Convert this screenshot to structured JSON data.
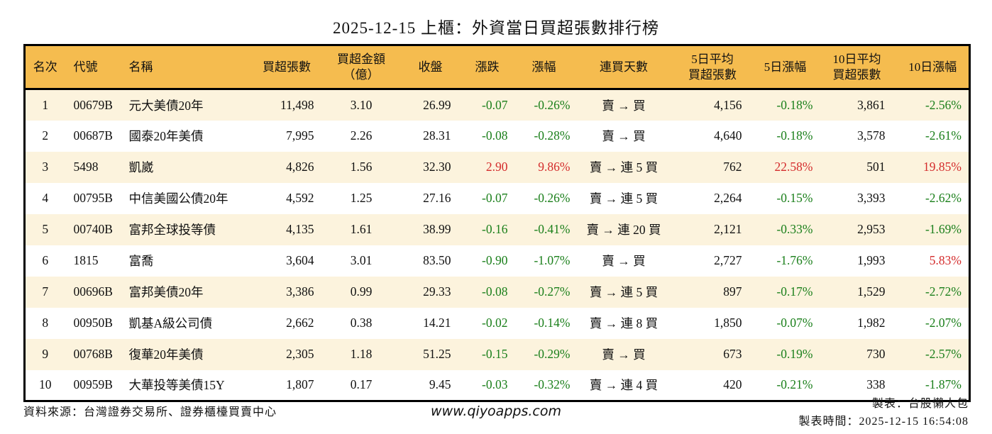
{
  "title": "2025-12-15 上櫃：外資當日買超張數排行榜",
  "colors": {
    "header_bg": "#f5bc4f",
    "stripe_bg": "#fcf3dd",
    "down_green": "#1a7f1a",
    "up_red": "#d42c2c"
  },
  "table": {
    "headers": [
      [
        "名次"
      ],
      [
        "代號"
      ],
      [
        "名稱"
      ],
      [
        "買超張數"
      ],
      [
        "買超金額",
        "（億）"
      ],
      [
        "收盤"
      ],
      [
        "漲跌"
      ],
      [
        "漲幅"
      ],
      [
        "連買天數"
      ],
      [
        "5日平均",
        "買超張數"
      ],
      [
        "5日漲幅"
      ],
      [
        "10日平均",
        "買超張數"
      ],
      [
        "10日漲幅"
      ]
    ],
    "rows": [
      {
        "rank": "1",
        "code": "00679B",
        "name": "元大美債20年",
        "net_buy": "11,498",
        "amount": "3.10",
        "close": "26.99",
        "change": "-0.07",
        "change_pct": "-0.26%",
        "streak": "賣 → 買",
        "avg5": "4,156",
        "pct5": "-0.18%",
        "avg10": "3,861",
        "pct10": "-2.56%",
        "day_color": "green",
        "pct5_color": "green",
        "pct10_color": "green"
      },
      {
        "rank": "2",
        "code": "00687B",
        "name": "國泰20年美債",
        "net_buy": "7,995",
        "amount": "2.26",
        "close": "28.31",
        "change": "-0.08",
        "change_pct": "-0.28%",
        "streak": "賣 → 買",
        "avg5": "4,640",
        "pct5": "-0.18%",
        "avg10": "3,578",
        "pct10": "-2.61%",
        "day_color": "green",
        "pct5_color": "green",
        "pct10_color": "green"
      },
      {
        "rank": "3",
        "code": "5498",
        "name": "凱崴",
        "net_buy": "4,826",
        "amount": "1.56",
        "close": "32.30",
        "change": "2.90",
        "change_pct": "9.86%",
        "streak": "賣 → 連 5 買",
        "avg5": "762",
        "pct5": "22.58%",
        "avg10": "501",
        "pct10": "19.85%",
        "day_color": "red",
        "pct5_color": "red",
        "pct10_color": "red"
      },
      {
        "rank": "4",
        "code": "00795B",
        "name": "中信美國公債20年",
        "net_buy": "4,592",
        "amount": "1.25",
        "close": "27.16",
        "change": "-0.07",
        "change_pct": "-0.26%",
        "streak": "賣 → 連 5 買",
        "avg5": "2,264",
        "pct5": "-0.15%",
        "avg10": "3,393",
        "pct10": "-2.62%",
        "day_color": "green",
        "pct5_color": "green",
        "pct10_color": "green"
      },
      {
        "rank": "5",
        "code": "00740B",
        "name": "富邦全球投等債",
        "net_buy": "4,135",
        "amount": "1.61",
        "close": "38.99",
        "change": "-0.16",
        "change_pct": "-0.41%",
        "streak": "賣 → 連 20 買",
        "avg5": "2,121",
        "pct5": "-0.33%",
        "avg10": "2,953",
        "pct10": "-1.69%",
        "day_color": "green",
        "pct5_color": "green",
        "pct10_color": "green"
      },
      {
        "rank": "6",
        "code": "1815",
        "name": "富喬",
        "net_buy": "3,604",
        "amount": "3.01",
        "close": "83.50",
        "change": "-0.90",
        "change_pct": "-1.07%",
        "streak": "賣 → 買",
        "avg5": "2,727",
        "pct5": "-1.76%",
        "avg10": "1,993",
        "pct10": "5.83%",
        "day_color": "green",
        "pct5_color": "green",
        "pct10_color": "red"
      },
      {
        "rank": "7",
        "code": "00696B",
        "name": "富邦美債20年",
        "net_buy": "3,386",
        "amount": "0.99",
        "close": "29.33",
        "change": "-0.08",
        "change_pct": "-0.27%",
        "streak": "賣 → 連 5 買",
        "avg5": "897",
        "pct5": "-0.17%",
        "avg10": "1,529",
        "pct10": "-2.72%",
        "day_color": "green",
        "pct5_color": "green",
        "pct10_color": "green"
      },
      {
        "rank": "8",
        "code": "00950B",
        "name": "凱基A級公司債",
        "net_buy": "2,662",
        "amount": "0.38",
        "close": "14.21",
        "change": "-0.02",
        "change_pct": "-0.14%",
        "streak": "賣 → 連 8 買",
        "avg5": "1,850",
        "pct5": "-0.07%",
        "avg10": "1,982",
        "pct10": "-2.07%",
        "day_color": "green",
        "pct5_color": "green",
        "pct10_color": "green"
      },
      {
        "rank": "9",
        "code": "00768B",
        "name": "復華20年美債",
        "net_buy": "2,305",
        "amount": "1.18",
        "close": "51.25",
        "change": "-0.15",
        "change_pct": "-0.29%",
        "streak": "賣 → 買",
        "avg5": "673",
        "pct5": "-0.19%",
        "avg10": "730",
        "pct10": "-2.57%",
        "day_color": "green",
        "pct5_color": "green",
        "pct10_color": "green"
      },
      {
        "rank": "10",
        "code": "00959B",
        "name": "大華投等美債15Y",
        "net_buy": "1,807",
        "amount": "0.17",
        "close": "9.45",
        "change": "-0.03",
        "change_pct": "-0.32%",
        "streak": "賣 → 連 4 買",
        "avg5": "420",
        "pct5": "-0.21%",
        "avg10": "338",
        "pct10": "-1.87%",
        "day_color": "green",
        "pct5_color": "green",
        "pct10_color": "green"
      }
    ]
  },
  "footer": {
    "source": "資料來源：台灣證券交易所、證券櫃檯買賣中心",
    "website": "www.qiyoapps.com",
    "maker": "製表：台股懶人包",
    "made_time": "製表時間：2025-12-15 16:54:08"
  }
}
